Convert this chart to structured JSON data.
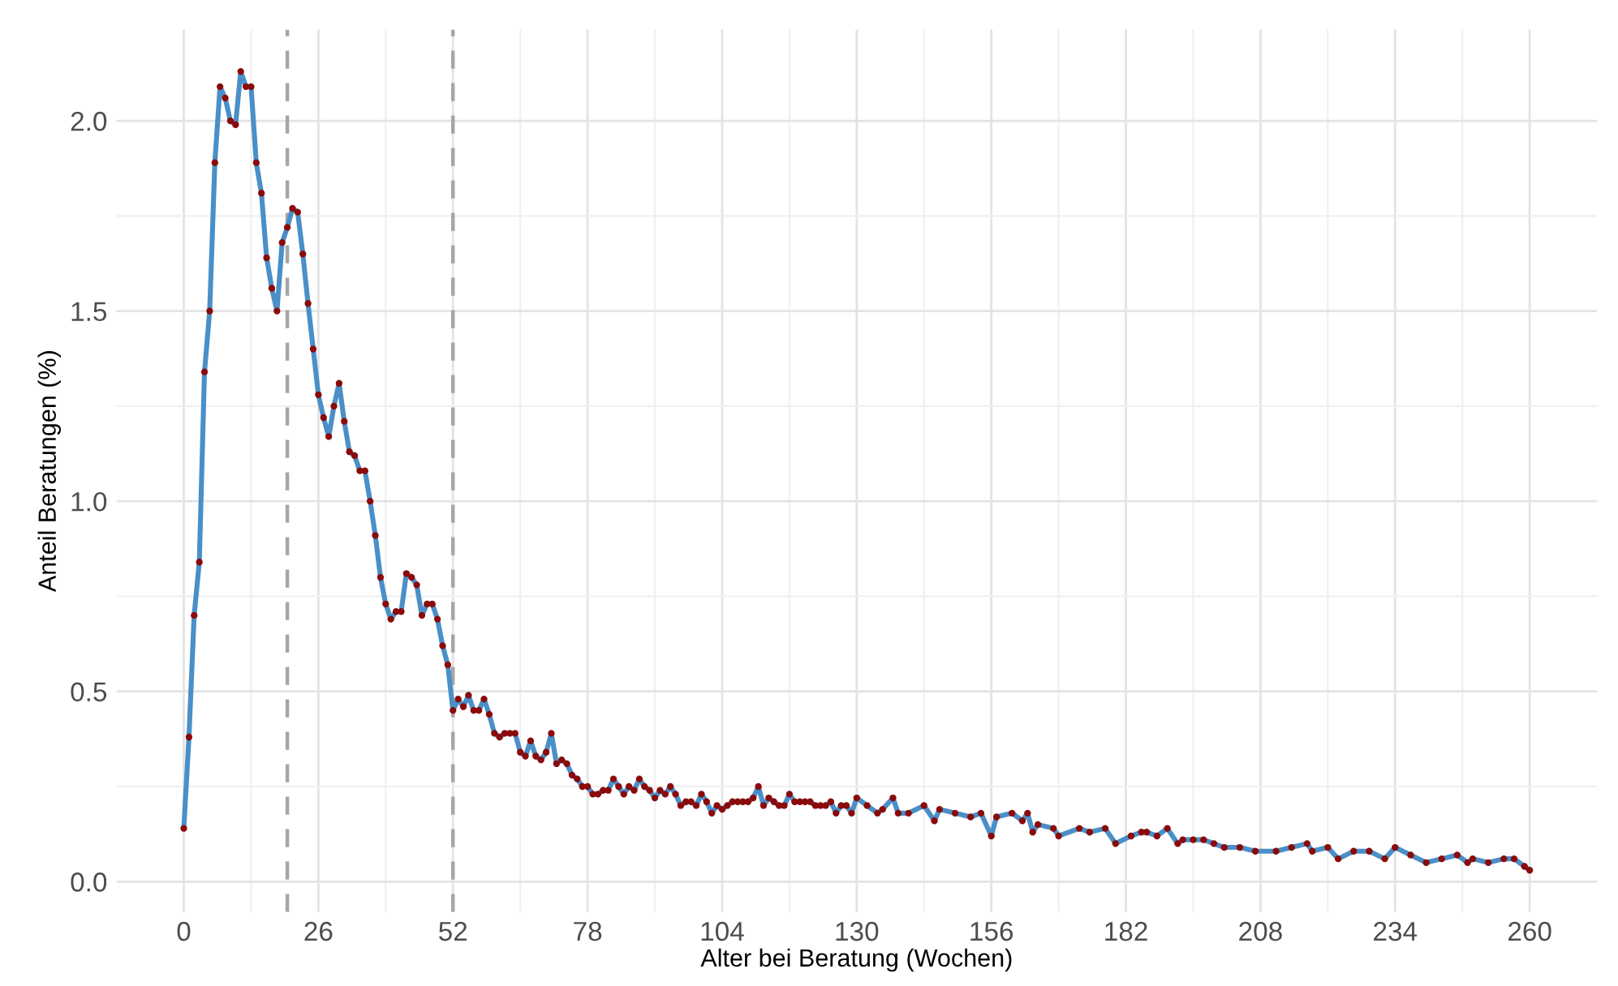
{
  "chart_data": {
    "type": "line",
    "xlabel": "Alter bei Beratung (Wochen)",
    "ylabel": "Anteil Beratungen (%)",
    "series": [
      {
        "color": "#4a8fc7",
        "marker": "none",
        "x": [
          0,
          1,
          2,
          3,
          4,
          5,
          6,
          7,
          8,
          9,
          10,
          11,
          12,
          13,
          14,
          15,
          16,
          17,
          18,
          19,
          20,
          21,
          22,
          23,
          24,
          25,
          26,
          27,
          28,
          29,
          30,
          31,
          32,
          33,
          34,
          35,
          36,
          37,
          38,
          39,
          40,
          41,
          42,
          43,
          44,
          45,
          46,
          47,
          48,
          49,
          50,
          51,
          52,
          53,
          54,
          55,
          56,
          57,
          58,
          59,
          60,
          61,
          62,
          63,
          64,
          65,
          66,
          67,
          68,
          69,
          70,
          71,
          72,
          73,
          74,
          75,
          76,
          77,
          78,
          79,
          80,
          81,
          82,
          83,
          84,
          85,
          86,
          87,
          88,
          89,
          90,
          91,
          92,
          93,
          94,
          95,
          96,
          97,
          98,
          99,
          100,
          101,
          102,
          103,
          104,
          105,
          106,
          107,
          108,
          109,
          110,
          111,
          112,
          113,
          114,
          115,
          116,
          117,
          118,
          119,
          120,
          121,
          122,
          123,
          124,
          125,
          126,
          127,
          128,
          129,
          130,
          132,
          134,
          135,
          137,
          138,
          140,
          143,
          145,
          146,
          149,
          152,
          154,
          156,
          157,
          160,
          162,
          163,
          164,
          165,
          168,
          169,
          173,
          175,
          178,
          180,
          183,
          185,
          186,
          188,
          190,
          192,
          193,
          195,
          197,
          199,
          201,
          204,
          207,
          211,
          214,
          217,
          218,
          221,
          223,
          226,
          229,
          232,
          234,
          237,
          240,
          243,
          246,
          248,
          249,
          252,
          255,
          257,
          259,
          260
        ],
        "values": [
          0.14,
          0.38,
          0.7,
          0.84,
          1.34,
          1.5,
          1.89,
          2.09,
          2.06,
          2.0,
          1.99,
          2.13,
          2.09,
          2.09,
          1.89,
          1.81,
          1.64,
          1.56,
          1.5,
          1.68,
          1.72,
          1.77,
          1.76,
          1.65,
          1.52,
          1.4,
          1.28,
          1.22,
          1.17,
          1.25,
          1.31,
          1.21,
          1.13,
          1.12,
          1.08,
          1.08,
          1.0,
          0.91,
          0.8,
          0.73,
          0.69,
          0.71,
          0.71,
          0.81,
          0.8,
          0.78,
          0.7,
          0.73,
          0.73,
          0.69,
          0.62,
          0.57,
          0.45,
          0.48,
          0.46,
          0.49,
          0.45,
          0.45,
          0.48,
          0.44,
          0.39,
          0.38,
          0.39,
          0.39,
          0.39,
          0.34,
          0.33,
          0.37,
          0.33,
          0.32,
          0.34,
          0.39,
          0.31,
          0.32,
          0.31,
          0.28,
          0.27,
          0.25,
          0.25,
          0.23,
          0.23,
          0.24,
          0.24,
          0.27,
          0.25,
          0.23,
          0.25,
          0.24,
          0.27,
          0.25,
          0.24,
          0.22,
          0.24,
          0.23,
          0.25,
          0.23,
          0.2,
          0.21,
          0.21,
          0.2,
          0.23,
          0.21,
          0.18,
          0.2,
          0.19,
          0.2,
          0.21,
          0.21,
          0.21,
          0.21,
          0.22,
          0.25,
          0.2,
          0.22,
          0.21,
          0.2,
          0.2,
          0.23,
          0.21,
          0.21,
          0.21,
          0.21,
          0.2,
          0.2,
          0.2,
          0.21,
          0.18,
          0.2,
          0.2,
          0.18,
          0.22,
          0.2,
          0.18,
          0.19,
          0.22,
          0.18,
          0.18,
          0.2,
          0.16,
          0.19,
          0.18,
          0.17,
          0.18,
          0.12,
          0.17,
          0.18,
          0.16,
          0.18,
          0.13,
          0.15,
          0.14,
          0.12,
          0.14,
          0.13,
          0.14,
          0.1,
          0.12,
          0.13,
          0.13,
          0.12,
          0.14,
          0.1,
          0.11,
          0.11,
          0.11,
          0.1,
          0.09,
          0.09,
          0.08,
          0.08,
          0.09,
          0.1,
          0.08,
          0.09,
          0.06,
          0.08,
          0.08,
          0.06,
          0.09,
          0.07,
          0.05,
          0.06,
          0.07,
          0.05,
          0.06,
          0.05,
          0.06,
          0.06,
          0.04,
          0.03
        ]
      },
      {
        "type": "scatter",
        "color": "#8b0a0a",
        "marker": "circle",
        "x": [
          0,
          1,
          2,
          3,
          4,
          5,
          6,
          7,
          8,
          9,
          10,
          11,
          12,
          13,
          14,
          15,
          16,
          17,
          18,
          19,
          20,
          21,
          22,
          23,
          24,
          25,
          26,
          27,
          28,
          29,
          30,
          31,
          32,
          33,
          34,
          35,
          36,
          37,
          38,
          39,
          40,
          41,
          42,
          43,
          44,
          45,
          46,
          47,
          48,
          49,
          50,
          51,
          52,
          53,
          54,
          55,
          56,
          57,
          58,
          59,
          60,
          61,
          62,
          63,
          64,
          65,
          66,
          67,
          68,
          69,
          70,
          71,
          72,
          73,
          74,
          75,
          76,
          77,
          78,
          79,
          80,
          81,
          82,
          83,
          84,
          85,
          86,
          87,
          88,
          89,
          90,
          91,
          92,
          93,
          94,
          95,
          96,
          97,
          98,
          99,
          100,
          101,
          102,
          103,
          104,
          105,
          106,
          107,
          108,
          109,
          110,
          111,
          112,
          113,
          114,
          115,
          116,
          117,
          118,
          119,
          120,
          121,
          122,
          123,
          124,
          125,
          126,
          127,
          128,
          129,
          130,
          132,
          134,
          135,
          137,
          138,
          140,
          143,
          145,
          146,
          149,
          152,
          154,
          156,
          157,
          160,
          162,
          163,
          164,
          165,
          168,
          169,
          173,
          175,
          178,
          180,
          183,
          185,
          186,
          188,
          190,
          192,
          193,
          195,
          197,
          199,
          201,
          204,
          207,
          211,
          214,
          217,
          218,
          221,
          223,
          226,
          229,
          232,
          234,
          237,
          240,
          243,
          246,
          248,
          249,
          252,
          255,
          257,
          259,
          260
        ],
        "values": [
          0.14,
          0.38,
          0.7,
          0.84,
          1.34,
          1.5,
          1.89,
          2.09,
          2.06,
          2.0,
          1.99,
          2.13,
          2.09,
          2.09,
          1.89,
          1.81,
          1.64,
          1.56,
          1.5,
          1.68,
          1.72,
          1.77,
          1.76,
          1.65,
          1.52,
          1.4,
          1.28,
          1.22,
          1.17,
          1.25,
          1.31,
          1.21,
          1.13,
          1.12,
          1.08,
          1.08,
          1.0,
          0.91,
          0.8,
          0.73,
          0.69,
          0.71,
          0.71,
          0.81,
          0.8,
          0.78,
          0.7,
          0.73,
          0.73,
          0.69,
          0.62,
          0.57,
          0.45,
          0.48,
          0.46,
          0.49,
          0.45,
          0.45,
          0.48,
          0.44,
          0.39,
          0.38,
          0.39,
          0.39,
          0.39,
          0.34,
          0.33,
          0.37,
          0.33,
          0.32,
          0.34,
          0.39,
          0.31,
          0.32,
          0.31,
          0.28,
          0.27,
          0.25,
          0.25,
          0.23,
          0.23,
          0.24,
          0.24,
          0.27,
          0.25,
          0.23,
          0.25,
          0.24,
          0.27,
          0.25,
          0.24,
          0.22,
          0.24,
          0.23,
          0.25,
          0.23,
          0.2,
          0.21,
          0.21,
          0.2,
          0.23,
          0.21,
          0.18,
          0.2,
          0.19,
          0.2,
          0.21,
          0.21,
          0.21,
          0.21,
          0.22,
          0.25,
          0.2,
          0.22,
          0.21,
          0.2,
          0.2,
          0.23,
          0.21,
          0.21,
          0.21,
          0.21,
          0.2,
          0.2,
          0.2,
          0.21,
          0.18,
          0.2,
          0.2,
          0.18,
          0.22,
          0.2,
          0.18,
          0.19,
          0.22,
          0.18,
          0.18,
          0.2,
          0.16,
          0.19,
          0.18,
          0.17,
          0.18,
          0.12,
          0.17,
          0.18,
          0.16,
          0.18,
          0.13,
          0.15,
          0.14,
          0.12,
          0.14,
          0.13,
          0.14,
          0.1,
          0.12,
          0.13,
          0.13,
          0.12,
          0.14,
          0.1,
          0.11,
          0.11,
          0.11,
          0.1,
          0.09,
          0.09,
          0.08,
          0.08,
          0.09,
          0.1,
          0.08,
          0.09,
          0.06,
          0.08,
          0.08,
          0.06,
          0.09,
          0.07,
          0.05,
          0.06,
          0.07,
          0.05,
          0.06,
          0.05,
          0.06,
          0.06,
          0.04,
          0.03
        ]
      }
    ],
    "xlim": [
      -13,
      273
    ],
    "ylim": [
      -0.08,
      2.24
    ],
    "xticks": [
      0,
      {
        "value": 13,
        "label": null
      },
      26,
      {
        "value": 39,
        "label": null
      },
      52,
      {
        "value": 65,
        "label": null
      },
      78,
      {
        "value": 91,
        "label": null
      },
      104,
      {
        "value": 117,
        "label": null
      },
      130,
      {
        "value": 143,
        "label": null
      },
      156,
      {
        "value": 169,
        "label": null
      },
      182,
      {
        "value": 195,
        "label": null
      },
      208,
      {
        "value": 221,
        "label": null
      },
      234,
      {
        "value": 247,
        "label": null
      },
      260
    ],
    "yticks": [
      {
        "value": 0,
        "label": "0.0"
      },
      {
        "value": 0.25,
        "label": null
      },
      {
        "value": 0.5,
        "label": "0.5"
      },
      {
        "value": 0.75,
        "label": null
      },
      {
        "value": 1,
        "label": "1.0"
      },
      {
        "value": 1.25,
        "label": null
      },
      {
        "value": 1.5,
        "label": "1.5"
      },
      {
        "value": 1.75,
        "label": null
      },
      {
        "value": 2,
        "label": "2.0"
      }
    ],
    "grid": true,
    "line_style": "solid",
    "ref_lines": [
      {
        "axis": "x",
        "value": 20,
        "color": "#a6a6a6",
        "line_style": "dashed"
      },
      {
        "axis": "x",
        "value": 52,
        "color": "#a6a6a6",
        "line_style": "dashed"
      }
    ]
  }
}
